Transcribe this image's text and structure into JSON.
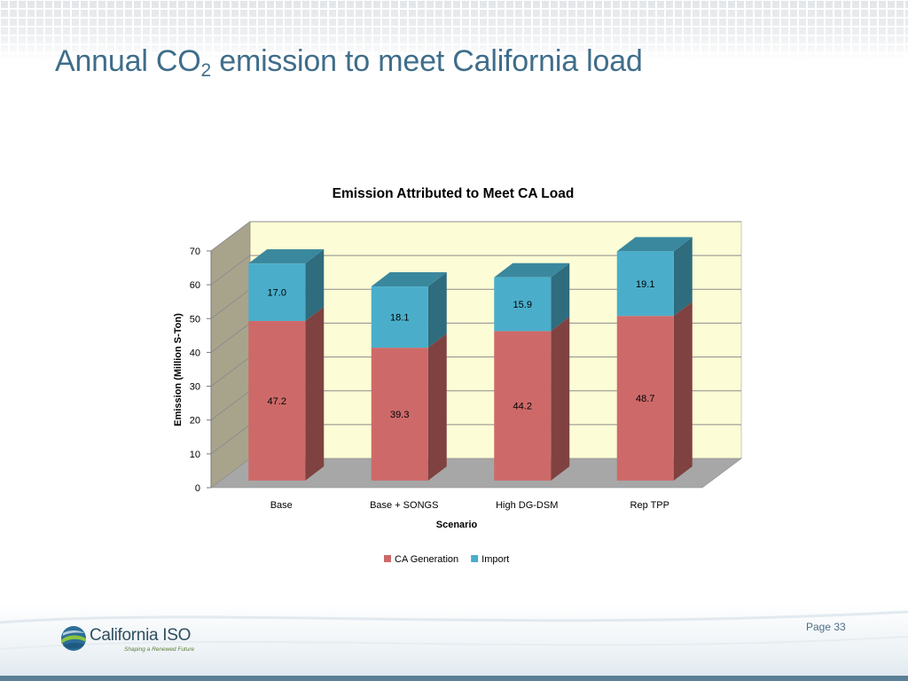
{
  "slide": {
    "title_main": "Annual CO",
    "title_sub": "2",
    "title_rest": " emission to meet California load",
    "page_label": "Page 33",
    "logo_name": "California ISO",
    "logo_tagline": "Shaping a Renewed Future"
  },
  "colors": {
    "title": "#3f6d8a",
    "ca_generation": "#cd6a69",
    "import": "#4aaecb",
    "plot_background": "#fcfcd6",
    "side_wall": "#a8a48c",
    "floor": "#a7a7a7"
  },
  "chart_data": {
    "type": "bar",
    "stacked": true,
    "three_d": true,
    "title": "Emission Attributed to Meet CA Load",
    "xlabel": "Scenario",
    "ylabel": "Emission (Million S-Ton)",
    "categories": [
      "Base",
      "Base + SONGS",
      "High DG-DSM",
      "Rep TPP"
    ],
    "series": [
      {
        "name": "CA Generation",
        "values": [
          47.2,
          39.3,
          44.2,
          48.7
        ]
      },
      {
        "name": "Import",
        "values": [
          17.0,
          18.1,
          15.9,
          19.1
        ]
      }
    ],
    "data_labels": [
      [
        "47.2",
        "39.3",
        "44.2",
        "48.7"
      ],
      [
        "17.0",
        "18.1",
        "15.9",
        "19.1"
      ]
    ],
    "ylim": [
      0,
      70
    ],
    "yticks": [
      0,
      10,
      20,
      30,
      40,
      50,
      60,
      70
    ],
    "grid": true,
    "legend_position": "bottom"
  }
}
